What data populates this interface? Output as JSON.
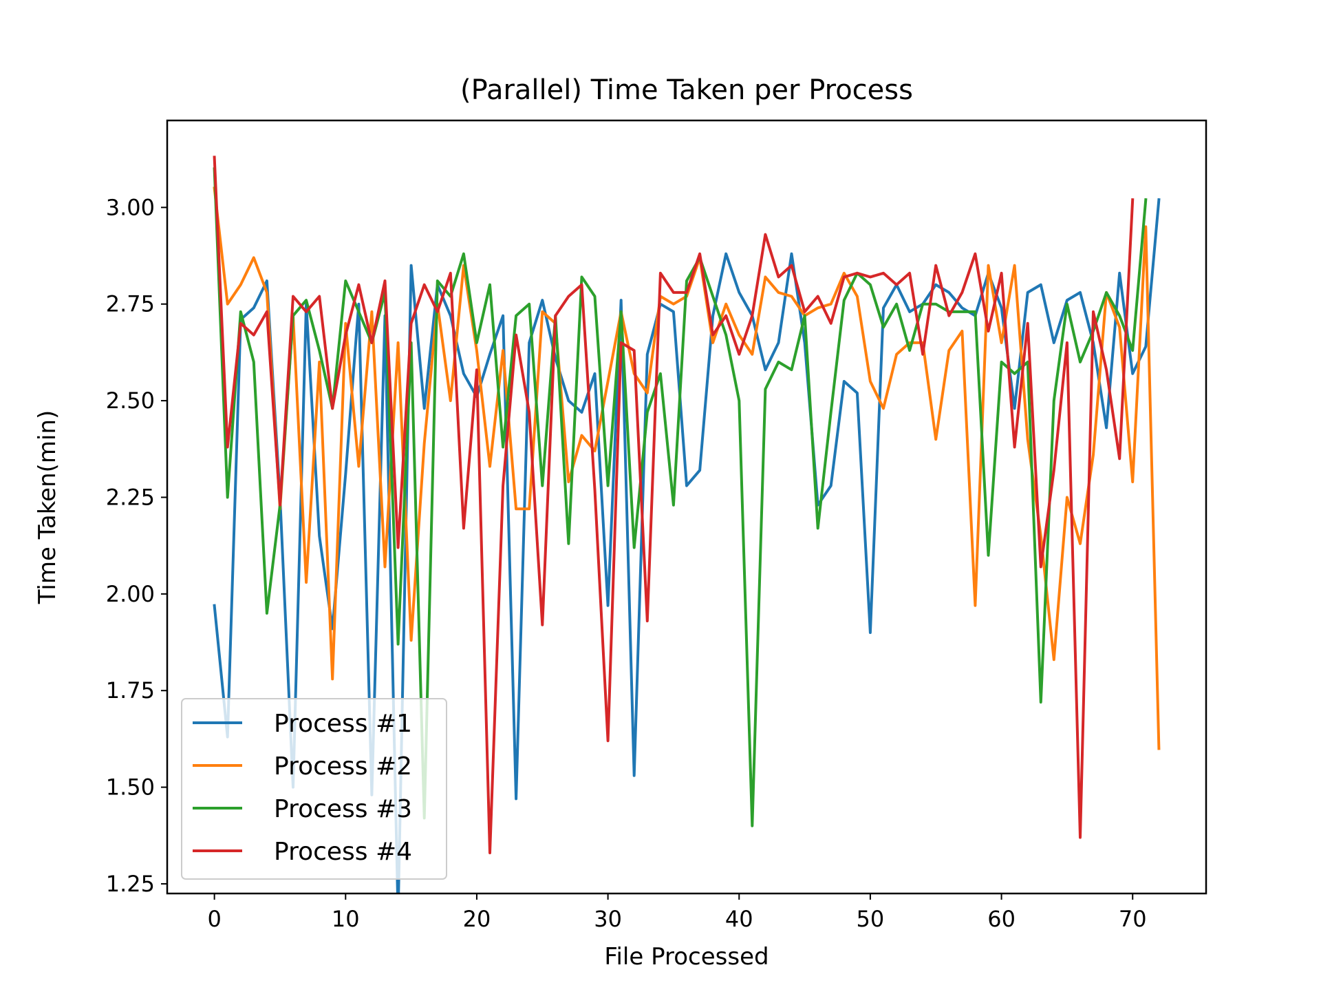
{
  "chart_data": {
    "type": "line",
    "title": "(Parallel) Time Taken per Process",
    "xlabel": "File Processed",
    "ylabel": "Time Taken(min)",
    "xlim": [
      -3.6,
      75.6
    ],
    "ylim": [
      1.225,
      3.225
    ],
    "xticks": [
      0,
      10,
      20,
      30,
      40,
      50,
      60,
      70
    ],
    "xtick_labels": [
      "0",
      "10",
      "20",
      "30",
      "40",
      "50",
      "60",
      "70"
    ],
    "yticks": [
      1.25,
      1.5,
      1.75,
      2.0,
      2.25,
      2.5,
      2.75,
      3.0
    ],
    "ytick_labels": [
      "1.25",
      "1.50",
      "1.75",
      "2.00",
      "2.25",
      "2.50",
      "2.75",
      "3.00"
    ],
    "grid": false,
    "legend_position": "lower-left",
    "series": [
      {
        "name": "Process #1",
        "color": "#1f77b4",
        "x": [
          0,
          1,
          2,
          3,
          4,
          5,
          6,
          7,
          8,
          9,
          10,
          11,
          12,
          13,
          14,
          15,
          16,
          17,
          18,
          19,
          20,
          21,
          22,
          23,
          24,
          25,
          26,
          27,
          28,
          29,
          30,
          31,
          32,
          33,
          34,
          35,
          36,
          37,
          38,
          39,
          40,
          41,
          42,
          43,
          44,
          45,
          46,
          47,
          48,
          49,
          50,
          51,
          52,
          53,
          54,
          55,
          56,
          57,
          58,
          59,
          60,
          61,
          62,
          63,
          64,
          65,
          66,
          67,
          68,
          69,
          70,
          71,
          72
        ],
        "values": [
          1.97,
          1.63,
          2.71,
          2.74,
          2.81,
          2.25,
          1.5,
          2.75,
          2.15,
          1.91,
          2.31,
          2.75,
          1.48,
          2.72,
          1.17,
          2.85,
          2.48,
          2.8,
          2.72,
          2.57,
          2.51,
          2.62,
          2.72,
          1.47,
          2.65,
          2.76,
          2.61,
          2.5,
          2.47,
          2.57,
          1.97,
          2.76,
          1.53,
          2.62,
          2.75,
          2.73,
          2.28,
          2.32,
          2.72,
          2.88,
          2.78,
          2.72,
          2.58,
          2.65,
          2.88,
          2.65,
          2.23,
          2.28,
          2.55,
          2.52,
          1.9,
          2.74,
          2.8,
          2.73,
          2.75,
          2.8,
          2.78,
          2.74,
          2.72,
          2.83,
          2.74,
          2.48,
          2.78,
          2.8,
          2.65,
          2.76,
          2.78,
          2.65,
          2.43,
          2.83,
          2.57,
          2.64,
          3.02
        ]
      },
      {
        "name": "Process #2",
        "color": "#ff7f0e",
        "x": [
          0,
          1,
          2,
          3,
          4,
          5,
          6,
          7,
          8,
          9,
          10,
          11,
          12,
          13,
          14,
          15,
          16,
          17,
          18,
          19,
          20,
          21,
          22,
          23,
          24,
          25,
          26,
          27,
          28,
          29,
          30,
          31,
          32,
          33,
          34,
          35,
          36,
          37,
          38,
          39,
          40,
          41,
          42,
          43,
          44,
          45,
          46,
          47,
          48,
          49,
          50,
          51,
          52,
          53,
          54,
          55,
          56,
          57,
          58,
          59,
          60,
          61,
          62,
          63,
          64,
          65,
          66,
          67,
          68,
          69,
          70,
          71,
          72
        ],
        "values": [
          3.05,
          2.75,
          2.8,
          2.87,
          2.78,
          2.22,
          2.72,
          2.03,
          2.6,
          1.78,
          2.7,
          2.33,
          2.73,
          2.07,
          2.65,
          1.88,
          2.39,
          2.75,
          2.5,
          2.85,
          2.63,
          2.33,
          2.63,
          2.22,
          2.22,
          2.73,
          2.7,
          2.29,
          2.41,
          2.37,
          2.55,
          2.73,
          2.57,
          2.52,
          2.77,
          2.75,
          2.77,
          2.87,
          2.65,
          2.75,
          2.67,
          2.62,
          2.82,
          2.78,
          2.77,
          2.72,
          2.74,
          2.75,
          2.83,
          2.77,
          2.55,
          2.48,
          2.62,
          2.65,
          2.65,
          2.4,
          2.63,
          2.68,
          1.97,
          2.85,
          2.65,
          2.85,
          2.4,
          2.15,
          1.83,
          2.25,
          2.13,
          2.36,
          2.78,
          2.69,
          2.29,
          2.95,
          1.6
        ]
      },
      {
        "name": "Process #3",
        "color": "#2ca02c",
        "x": [
          0,
          1,
          2,
          3,
          4,
          5,
          6,
          7,
          8,
          9,
          10,
          11,
          12,
          13,
          14,
          15,
          16,
          17,
          18,
          19,
          20,
          21,
          22,
          23,
          24,
          25,
          26,
          27,
          28,
          29,
          30,
          31,
          32,
          33,
          34,
          35,
          36,
          37,
          38,
          39,
          40,
          41,
          42,
          43,
          44,
          45,
          46,
          47,
          48,
          49,
          50,
          51,
          52,
          53,
          54,
          55,
          56,
          57,
          58,
          59,
          60,
          61,
          62,
          63,
          64,
          65,
          66,
          67,
          68,
          69,
          70,
          71
        ],
        "values": [
          3.1,
          2.25,
          2.73,
          2.6,
          1.95,
          2.23,
          2.72,
          2.76,
          2.63,
          2.48,
          2.81,
          2.73,
          2.65,
          2.78,
          1.87,
          2.65,
          1.42,
          2.81,
          2.77,
          2.88,
          2.65,
          2.8,
          2.38,
          2.72,
          2.75,
          2.28,
          2.72,
          2.13,
          2.82,
          2.77,
          2.28,
          2.73,
          2.12,
          2.47,
          2.57,
          2.23,
          2.81,
          2.87,
          2.77,
          2.67,
          2.5,
          1.4,
          2.53,
          2.6,
          2.58,
          2.72,
          2.17,
          2.47,
          2.76,
          2.83,
          2.8,
          2.69,
          2.75,
          2.63,
          2.75,
          2.75,
          2.73,
          2.73,
          2.73,
          2.1,
          2.6,
          2.57,
          2.6,
          1.72,
          2.5,
          2.75,
          2.6,
          2.68,
          2.78,
          2.72,
          2.63,
          3.02
        ]
      },
      {
        "name": "Process #4",
        "color": "#d62728",
        "x": [
          0,
          1,
          2,
          3,
          4,
          5,
          6,
          7,
          8,
          9,
          10,
          11,
          12,
          13,
          14,
          15,
          16,
          17,
          18,
          19,
          20,
          21,
          22,
          23,
          24,
          25,
          26,
          27,
          28,
          29,
          30,
          31,
          32,
          33,
          34,
          35,
          36,
          37,
          38,
          39,
          40,
          41,
          42,
          43,
          44,
          45,
          46,
          47,
          48,
          49,
          50,
          51,
          52,
          53,
          54,
          55,
          56,
          57,
          58,
          59,
          60,
          61,
          62,
          63,
          64,
          65,
          66,
          67,
          68,
          69,
          70
        ],
        "values": [
          3.13,
          2.38,
          2.7,
          2.67,
          2.73,
          2.23,
          2.77,
          2.73,
          2.77,
          2.48,
          2.67,
          2.8,
          2.65,
          2.81,
          2.12,
          2.7,
          2.8,
          2.73,
          2.83,
          2.17,
          2.58,
          1.33,
          2.28,
          2.67,
          2.47,
          1.92,
          2.72,
          2.77,
          2.8,
          2.27,
          1.62,
          2.65,
          2.63,
          1.93,
          2.83,
          2.78,
          2.78,
          2.88,
          2.67,
          2.72,
          2.62,
          2.72,
          2.93,
          2.82,
          2.85,
          2.73,
          2.77,
          2.7,
          2.82,
          2.83,
          2.82,
          2.83,
          2.8,
          2.83,
          2.62,
          2.85,
          2.72,
          2.78,
          2.88,
          2.68,
          2.83,
          2.38,
          2.7,
          2.07,
          2.32,
          2.65,
          1.37,
          2.73,
          2.58,
          2.35,
          3.02
        ]
      }
    ]
  }
}
